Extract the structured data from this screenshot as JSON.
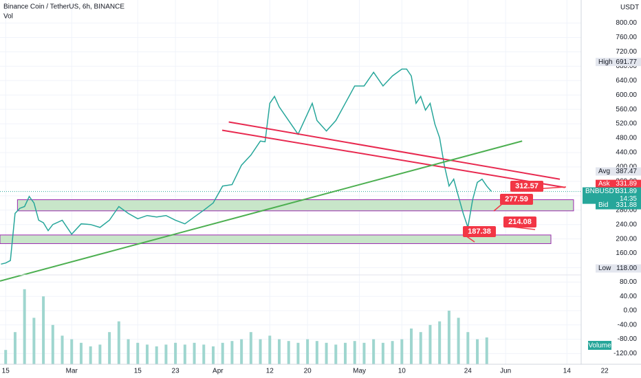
{
  "chart_data": {
    "type": "line",
    "title": "Binance Coin / TetherUS, 6h, BINANCE",
    "subtitle": "Vol",
    "currency": "USDT",
    "x": [
      -1,
      0,
      1,
      2,
      3,
      4,
      5,
      6,
      7,
      8,
      9,
      10,
      12,
      14,
      16,
      18,
      20,
      22,
      24,
      26,
      28,
      30,
      32,
      34,
      36,
      38,
      40,
      42,
      44,
      46,
      48,
      50,
      52,
      54,
      55,
      56,
      57,
      58,
      60,
      62,
      64,
      65,
      66,
      68,
      70,
      72,
      74,
      76,
      78,
      80,
      82,
      84,
      85,
      86,
      87,
      88,
      89,
      90,
      91,
      92,
      93,
      94,
      95,
      96,
      97,
      98,
      99,
      100,
      101,
      102,
      103
    ],
    "series": [
      {
        "name": "BNBUSDT",
        "color": "#26a69a",
        "values": [
          130,
          133,
          140,
          271,
          285,
          290,
          318,
          300,
          252,
          245,
          223,
          240,
          252,
          213,
          242,
          240,
          232,
          252,
          290,
          271,
          256,
          265,
          261,
          265,
          252,
          242,
          261,
          280,
          300,
          347,
          351,
          405,
          433,
          472,
          470,
          577,
          596,
          567,
          529,
          491,
          548,
          577,
          529,
          500,
          529,
          577,
          625,
          625,
          663,
          625,
          653,
          672,
          672,
          653,
          577,
          596,
          558,
          577,
          519,
          481,
          405,
          347,
          366,
          318,
          271,
          232,
          309,
          357,
          366,
          347,
          331.89
        ]
      }
    ],
    "xlim": [
      -1.2,
      134.7
    ],
    "xticks": [
      {
        "value": 0,
        "label": "15"
      },
      {
        "value": 14,
        "label": "Mar"
      },
      {
        "value": 28,
        "label": "15"
      },
      {
        "value": 36,
        "label": "23"
      },
      {
        "value": 45,
        "label": "Apr"
      },
      {
        "value": 56,
        "label": "12"
      },
      {
        "value": 64,
        "label": "20"
      },
      {
        "value": 75,
        "label": "May"
      },
      {
        "value": 84,
        "label": "10"
      },
      {
        "value": 98,
        "label": "24"
      },
      {
        "value": 106,
        "label": "Jun"
      },
      {
        "value": 119,
        "label": "14"
      },
      {
        "value": 127,
        "label": "22"
      }
    ],
    "ylim": [
      100,
      864
    ],
    "yticks": [
      {
        "value": 120,
        "label": "120.00"
      },
      {
        "value": 160,
        "label": "160.00"
      },
      {
        "value": 200,
        "label": "200.00"
      },
      {
        "value": 240,
        "label": "240.00"
      },
      {
        "value": 280,
        "label": "280.00"
      },
      {
        "value": 320,
        "label": "320.00"
      },
      {
        "value": 360,
        "label": "360.00"
      },
      {
        "value": 400,
        "label": "400.00"
      },
      {
        "value": 440,
        "label": "440.00"
      },
      {
        "value": 480,
        "label": "480.00"
      },
      {
        "value": 520,
        "label": "520.00"
      },
      {
        "value": 560,
        "label": "560.00"
      },
      {
        "value": 600,
        "label": "600.00"
      },
      {
        "value": 640,
        "label": "640.00"
      },
      {
        "value": 680,
        "label": "680.00"
      },
      {
        "value": 720,
        "label": "720.00"
      },
      {
        "value": 760,
        "label": "760.00"
      },
      {
        "value": 800,
        "label": "800.00"
      }
    ],
    "grid": true,
    "volume": {
      "name": "Volume",
      "color": "#9fd6cf",
      "x": [
        0,
        2,
        4,
        6,
        8,
        10,
        12,
        14,
        16,
        18,
        20,
        22,
        24,
        26,
        28,
        30,
        32,
        34,
        36,
        38,
        40,
        42,
        44,
        46,
        48,
        50,
        52,
        54,
        56,
        58,
        60,
        62,
        64,
        66,
        68,
        70,
        72,
        74,
        76,
        78,
        80,
        82,
        84,
        86,
        88,
        90,
        92,
        94,
        96,
        98,
        100,
        102
      ],
      "values": [
        -110,
        -60,
        60,
        -20,
        40,
        -40,
        -70,
        -80,
        -90,
        -100,
        -95,
        -60,
        -30,
        -80,
        -90,
        -95,
        -100,
        -95,
        -90,
        -95,
        -90,
        -95,
        -100,
        -90,
        -85,
        -80,
        -60,
        -80,
        -70,
        -80,
        -85,
        -90,
        -80,
        -85,
        -90,
        -95,
        -90,
        -85,
        -90,
        -80,
        -90,
        -85,
        -80,
        -50,
        -60,
        -40,
        -30,
        0,
        -20,
        -60,
        -80,
        -75
      ],
      "ylim": [
        -150,
        100
      ],
      "yticks": [
        {
          "value": 80,
          "label": "80.00"
        },
        {
          "value": 40,
          "label": "40.00"
        },
        {
          "value": 0,
          "label": "0.00"
        },
        {
          "value": -40,
          "label": "-40.00"
        },
        {
          "value": -80,
          "label": "-80.00"
        },
        {
          "value": -120,
          "label": "-120.00"
        }
      ]
    },
    "price_tags": [
      {
        "label": "High",
        "value": 691.77,
        "color": "#e3e6ee"
      },
      {
        "label": "Avg",
        "value": 387.47,
        "color": "#e3e6ee"
      },
      {
        "label": "Ask",
        "value": 331.89,
        "color": "#f23645"
      },
      {
        "value": 331.89,
        "countdown": "14:35",
        "color": "#26a69a"
      },
      {
        "label": "Bid",
        "value": 331.88,
        "color": "#26a69a"
      },
      {
        "label": "Low",
        "value": 118,
        "value_label": "118.00",
        "color": "#e3e6ee"
      }
    ],
    "trendlines": [
      {
        "color": "#e8294f",
        "x": [
          47.3,
          117.5
        ],
        "y": [
          525,
          366
        ]
      },
      {
        "color": "#e8294f",
        "x": [
          45.9,
          118.6
        ],
        "y": [
          502,
          343
        ]
      },
      {
        "color": "#4caf50",
        "x": [
          -1.2,
          109.5
        ],
        "y": [
          83,
          472
        ]
      }
    ],
    "zones": [
      {
        "color": "#c8e6c9",
        "x": [
          2.5,
          120.4
        ],
        "y": [
          278,
          309
        ]
      },
      {
        "color": "#c8e6c9",
        "x": [
          -1.2,
          115.6
        ],
        "y": [
          187,
          211
        ]
      }
    ],
    "callouts": [
      312.57,
      277.59,
      214.08,
      187.38
    ],
    "callout_color": "#f23645"
  }
}
